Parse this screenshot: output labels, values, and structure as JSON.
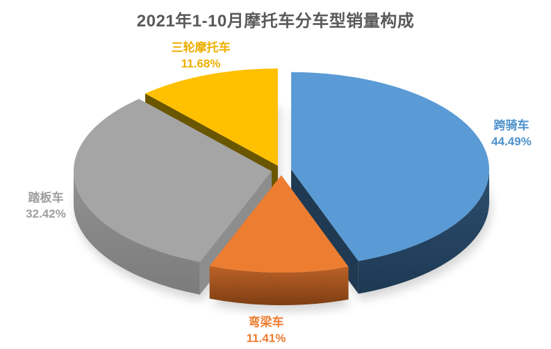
{
  "title": "2021年1-10月摩托车分车型销量构成",
  "chart_data": {
    "type": "pie",
    "style": "3d-exploded",
    "title": "2021年1-10月摩托车分车型销量构成",
    "title_color": "#595959",
    "background": "#FFFFFF",
    "unit": "%",
    "start_angle_deg": 0,
    "direction": "clockwise",
    "legend": "none",
    "categories": [
      "跨骑车",
      "弯梁车",
      "踏板车",
      "三轮摩托车"
    ],
    "values": [
      44.49,
      11.41,
      32.42,
      11.68
    ],
    "slices": [
      {
        "label": "跨骑车",
        "value": 44.49,
        "pct_label": "44.49%",
        "color": "#5B9BD5",
        "side_color": "#2C4E6E",
        "side_color_dark": "#1E3954",
        "cut_color": "#1F3A52",
        "label_color": "#4D91CC"
      },
      {
        "label": "弯梁车",
        "value": 11.41,
        "pct_label": "11.41%",
        "color": "#ED7D31",
        "side_color": "#BC6228",
        "side_color_dark": "#7E3E13",
        "cut_color": "#7A3B12",
        "label_color": "#ED7D31"
      },
      {
        "label": "踏板车",
        "value": 32.42,
        "pct_label": "32.42%",
        "color": "#A5A5A5",
        "side_color": "#919191",
        "side_color_dark": "#7C7C7C",
        "cut_color": "#8D8D8D",
        "label_color": "#9E9E9E"
      },
      {
        "label": "三轮摩托车",
        "value": 11.68,
        "pct_label": "11.68%",
        "color": "#FFC000",
        "side_color": "#A07B00",
        "side_color_dark": "#6B5600",
        "cut_color": "#6B5600",
        "label_color": "#EEAF00"
      }
    ]
  }
}
